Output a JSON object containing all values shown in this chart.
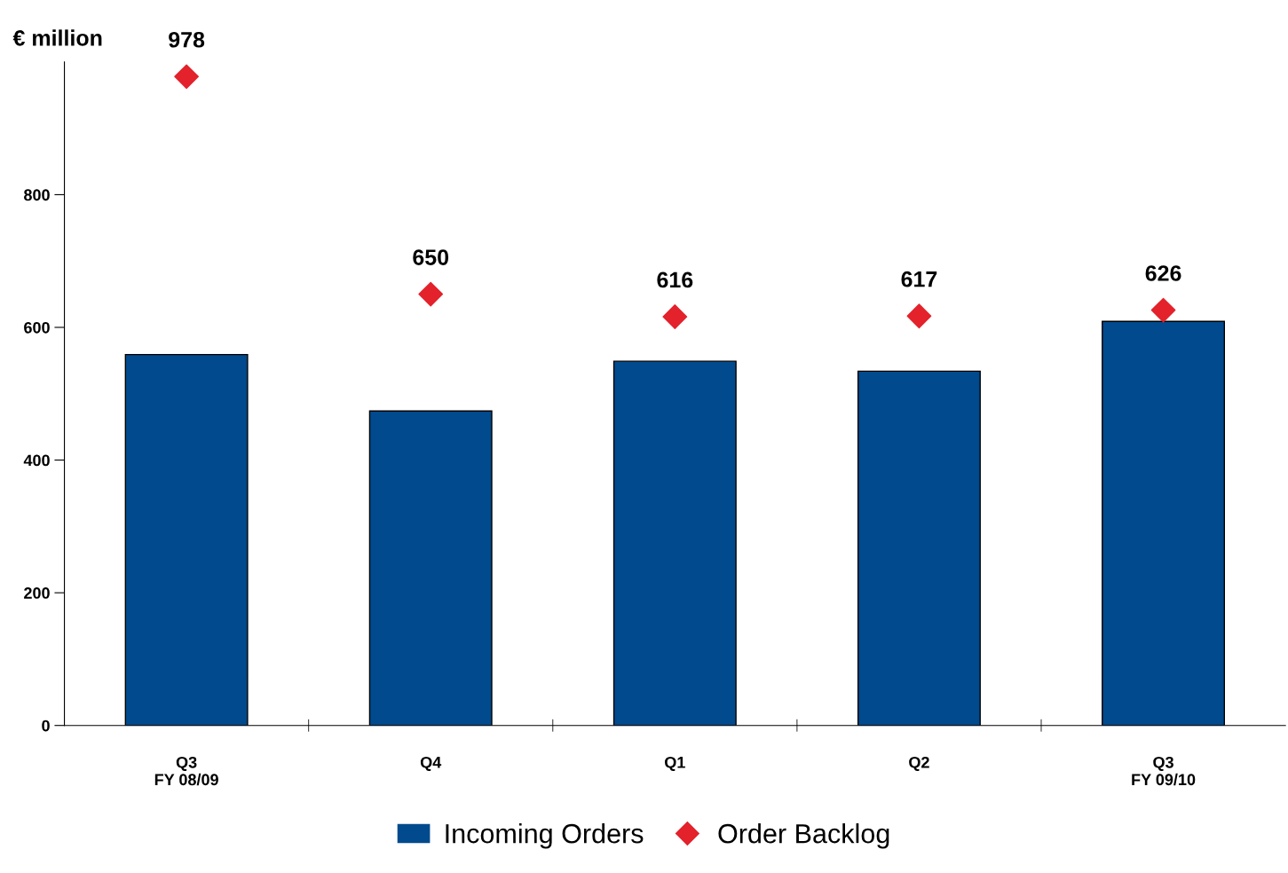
{
  "chart_data": {
    "type": "bar",
    "ylabel": "€ million",
    "categories": [
      "Q3\nFY 08/09",
      "Q4",
      "Q1",
      "Q2",
      "Q3\nFY 09/10"
    ],
    "series": [
      {
        "name": "Incoming Orders",
        "color": "#004a8d",
        "values": [
          559,
          474,
          549,
          534,
          609
        ]
      },
      {
        "name": "Order Backlog",
        "type": "scatter",
        "color": "#e3222b",
        "values": [
          978,
          650,
          616,
          617,
          626
        ],
        "data_labels": true
      }
    ],
    "ylim": [
      0,
      1000
    ],
    "yticks": [
      0,
      200,
      400,
      600,
      800
    ],
    "tick_labels": [
      "x",
      "y"
    ],
    "marker": "diamond",
    "legend": "bottom",
    "grid": false
  }
}
